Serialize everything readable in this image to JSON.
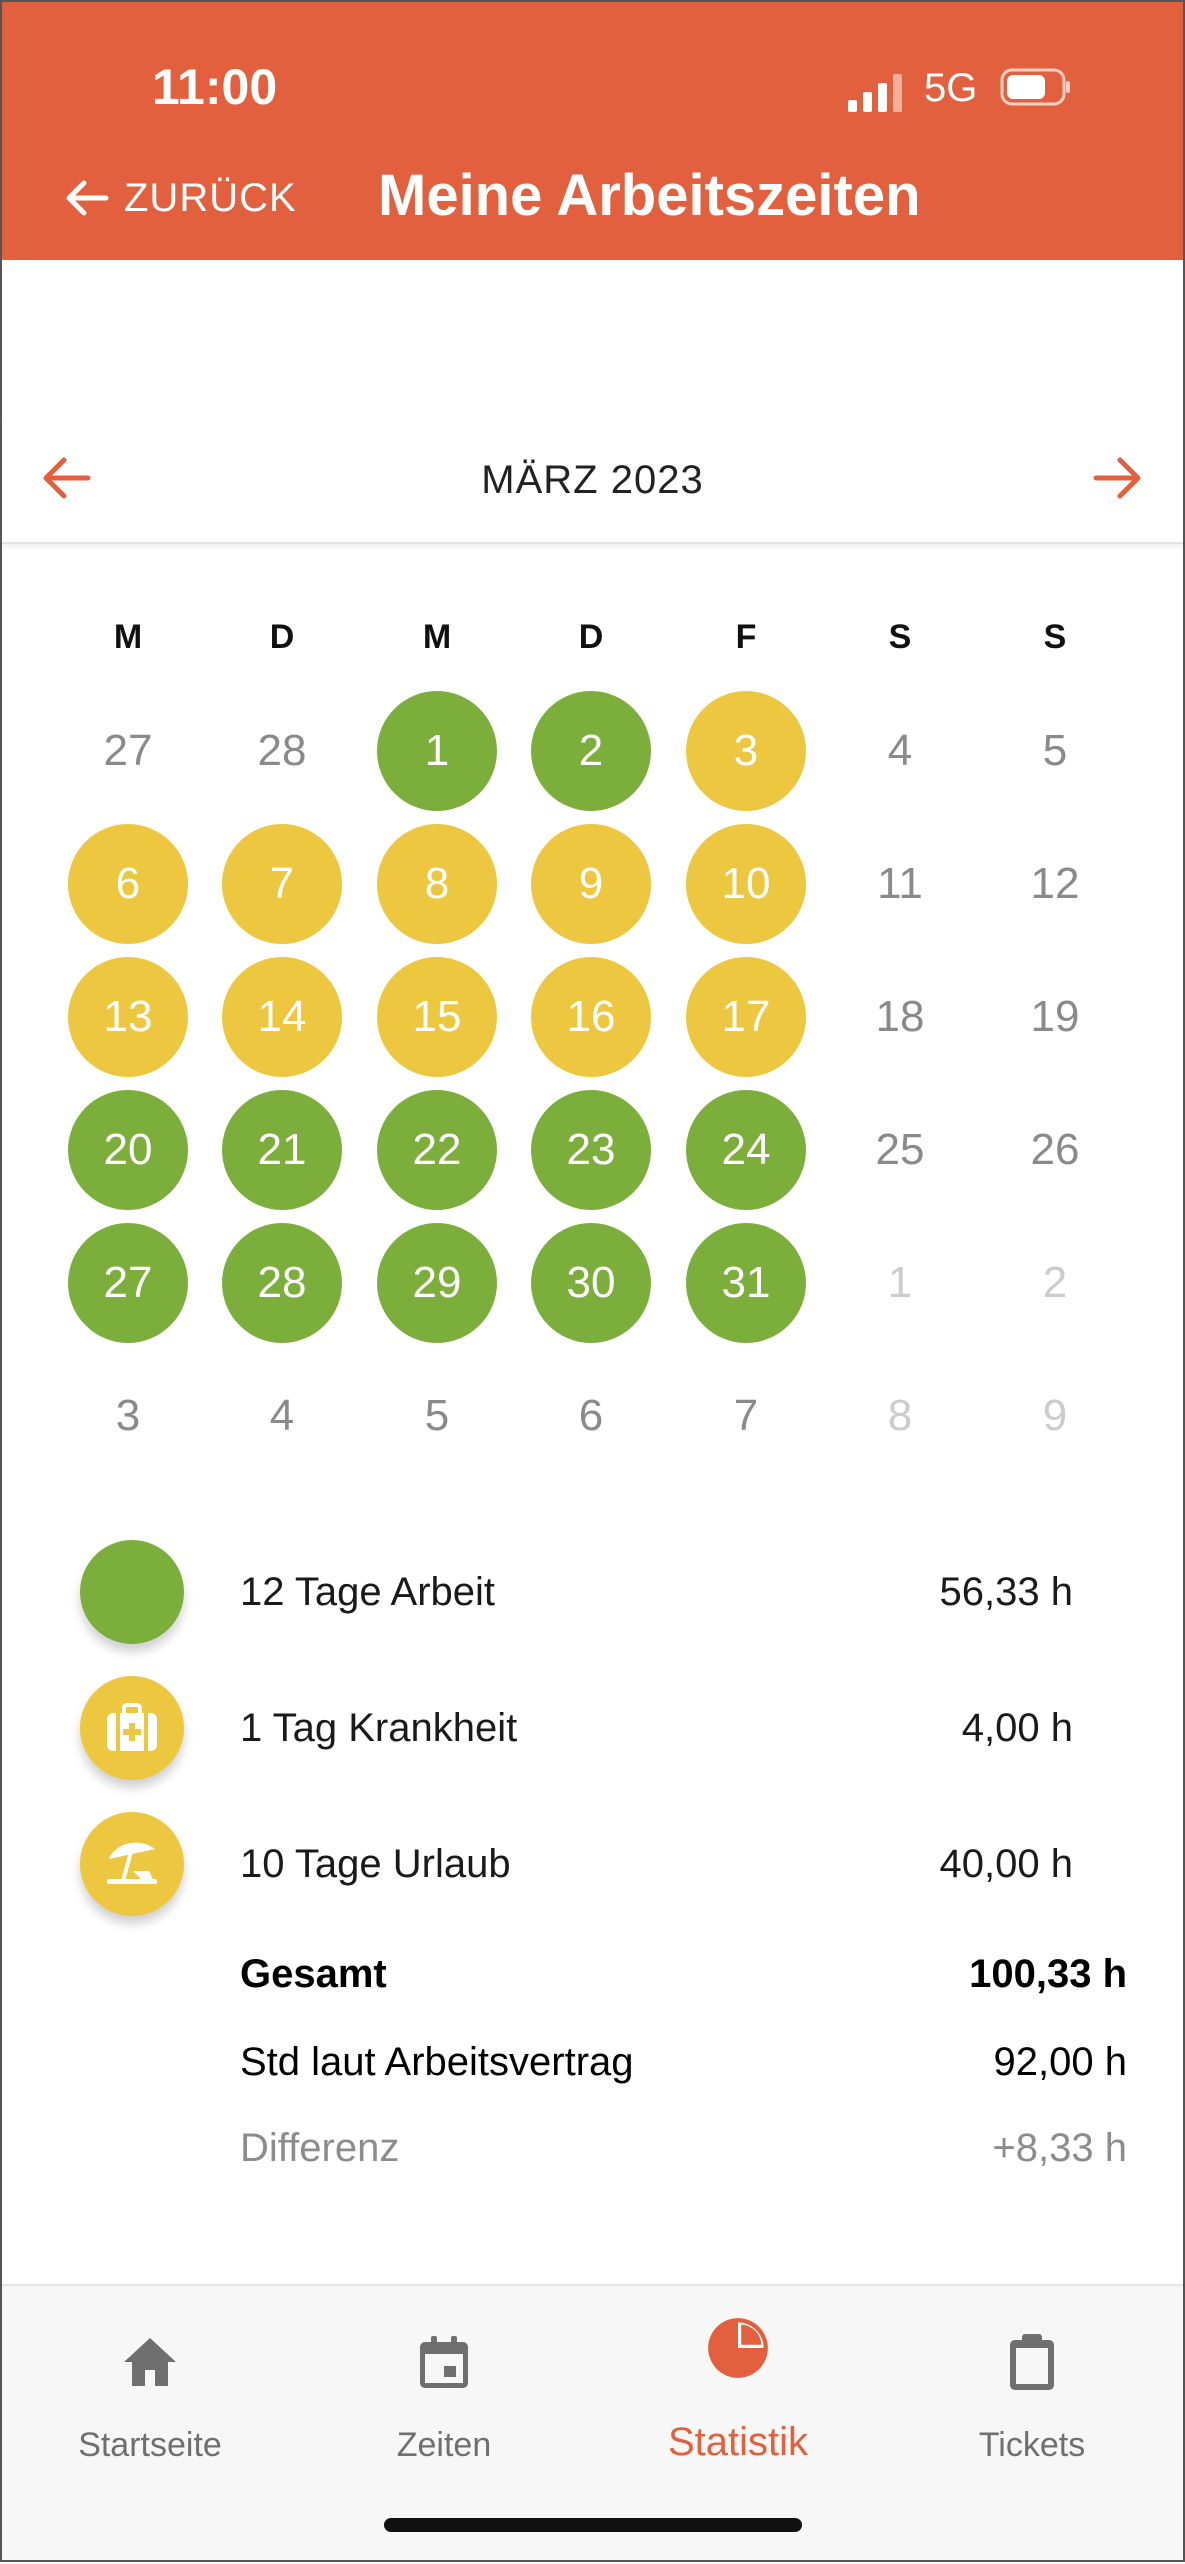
{
  "status_bar": {
    "time": "11:00",
    "network": "5G"
  },
  "header": {
    "back_label": "ZURÜCK",
    "title": "Meine Arbeitszeiten"
  },
  "month": {
    "label": "MÄRZ 2023"
  },
  "weekdays": [
    "M",
    "D",
    "M",
    "D",
    "F",
    "S",
    "S"
  ],
  "calendar": [
    [
      {
        "d": "27",
        "s": "plain"
      },
      {
        "d": "28",
        "s": "plain"
      },
      {
        "d": "1",
        "s": "green"
      },
      {
        "d": "2",
        "s": "green"
      },
      {
        "d": "3",
        "s": "yellow"
      },
      {
        "d": "4",
        "s": "plain"
      },
      {
        "d": "5",
        "s": "plain"
      }
    ],
    [
      {
        "d": "6",
        "s": "yellow"
      },
      {
        "d": "7",
        "s": "yellow"
      },
      {
        "d": "8",
        "s": "yellow"
      },
      {
        "d": "9",
        "s": "yellow"
      },
      {
        "d": "10",
        "s": "yellow"
      },
      {
        "d": "11",
        "s": "plain"
      },
      {
        "d": "12",
        "s": "plain"
      }
    ],
    [
      {
        "d": "13",
        "s": "yellow"
      },
      {
        "d": "14",
        "s": "yellow"
      },
      {
        "d": "15",
        "s": "yellow"
      },
      {
        "d": "16",
        "s": "yellow"
      },
      {
        "d": "17",
        "s": "yellow"
      },
      {
        "d": "18",
        "s": "plain"
      },
      {
        "d": "19",
        "s": "plain"
      }
    ],
    [
      {
        "d": "20",
        "s": "green"
      },
      {
        "d": "21",
        "s": "green"
      },
      {
        "d": "22",
        "s": "green"
      },
      {
        "d": "23",
        "s": "green"
      },
      {
        "d": "24",
        "s": "green"
      },
      {
        "d": "25",
        "s": "plain"
      },
      {
        "d": "26",
        "s": "plain"
      }
    ],
    [
      {
        "d": "27",
        "s": "green"
      },
      {
        "d": "28",
        "s": "green"
      },
      {
        "d": "29",
        "s": "green"
      },
      {
        "d": "30",
        "s": "green"
      },
      {
        "d": "31",
        "s": "green"
      },
      {
        "d": "1",
        "s": "faint"
      },
      {
        "d": "2",
        "s": "faint"
      }
    ],
    [
      {
        "d": "3",
        "s": "plain"
      },
      {
        "d": "4",
        "s": "plain"
      },
      {
        "d": "5",
        "s": "plain"
      },
      {
        "d": "6",
        "s": "plain"
      },
      {
        "d": "7",
        "s": "plain"
      },
      {
        "d": "8",
        "s": "faint"
      },
      {
        "d": "9",
        "s": "faint"
      }
    ]
  ],
  "summary": {
    "rows": [
      {
        "icon": "work-day-dot",
        "color": "#7cae3c",
        "label": "12 Tage Arbeit",
        "value": "56,33 h"
      },
      {
        "icon": "first-aid-kit-icon",
        "color": "#edc73f",
        "label": "1 Tag Krankheit",
        "value": "4,00 h"
      },
      {
        "icon": "beach-umbrella-icon",
        "color": "#edc73f",
        "label": "10 Tage Urlaub",
        "value": "40,00 h"
      }
    ],
    "total": {
      "label": "Gesamt",
      "value": "100,33 h"
    },
    "contract": {
      "label": "Std laut Arbeitsvertrag",
      "value": "92,00 h"
    },
    "difference": {
      "label": "Differenz",
      "value": "+8,33 h"
    }
  },
  "tabs": [
    {
      "label": "Startseite",
      "icon": "home-icon",
      "active": false
    },
    {
      "label": "Zeiten",
      "icon": "calendar-icon",
      "active": false
    },
    {
      "label": "Statistik",
      "icon": "pie-chart-icon",
      "active": true
    },
    {
      "label": "Tickets",
      "icon": "clipboard-icon",
      "active": false
    }
  ],
  "colors": {
    "accent": "#e2603d",
    "work": "#7cae3c",
    "absence": "#edc73f"
  }
}
